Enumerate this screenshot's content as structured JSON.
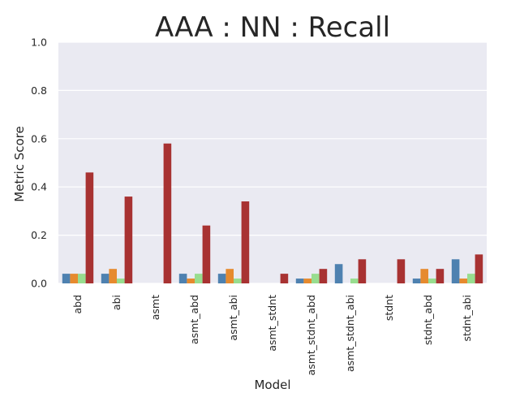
{
  "chart_data": {
    "type": "bar",
    "title": "AAA : NN : Recall",
    "xlabel": "Model",
    "ylabel": "Metric Score",
    "ylim": [
      0,
      1.0
    ],
    "yticks": [
      "0.0",
      "0.2",
      "0.4",
      "0.6",
      "0.8",
      "1.0"
    ],
    "grid": true,
    "legend": "none",
    "categories": [
      "abd",
      "abi",
      "asmt",
      "asmt_abd",
      "asmt_abi",
      "asmt_stdnt",
      "asmt_stdnt_abd",
      "asmt_stdnt_abi",
      "stdnt",
      "stdnt_abd",
      "stdnt_abi"
    ],
    "series": [
      {
        "color": "#4e81b0",
        "values": [
          0.04,
          0.04,
          0.0,
          0.04,
          0.04,
          0.0,
          0.02,
          0.08,
          0.0,
          0.02,
          0.1
        ]
      },
      {
        "color": "#e68a2e",
        "values": [
          0.04,
          0.06,
          0.0,
          0.02,
          0.06,
          0.0,
          0.02,
          0.0,
          0.0,
          0.06,
          0.02
        ]
      },
      {
        "color": "#98dd8f",
        "values": [
          0.04,
          0.02,
          0.0,
          0.04,
          0.02,
          0.0,
          0.04,
          0.02,
          0.0,
          0.02,
          0.04
        ]
      },
      {
        "color": "#a83232",
        "values": [
          0.46,
          0.36,
          0.58,
          0.24,
          0.34,
          0.04,
          0.06,
          0.1,
          0.1,
          0.06,
          0.12
        ]
      }
    ],
    "plot_background": "#eaeaf2",
    "grid_color": "#ffffff"
  }
}
